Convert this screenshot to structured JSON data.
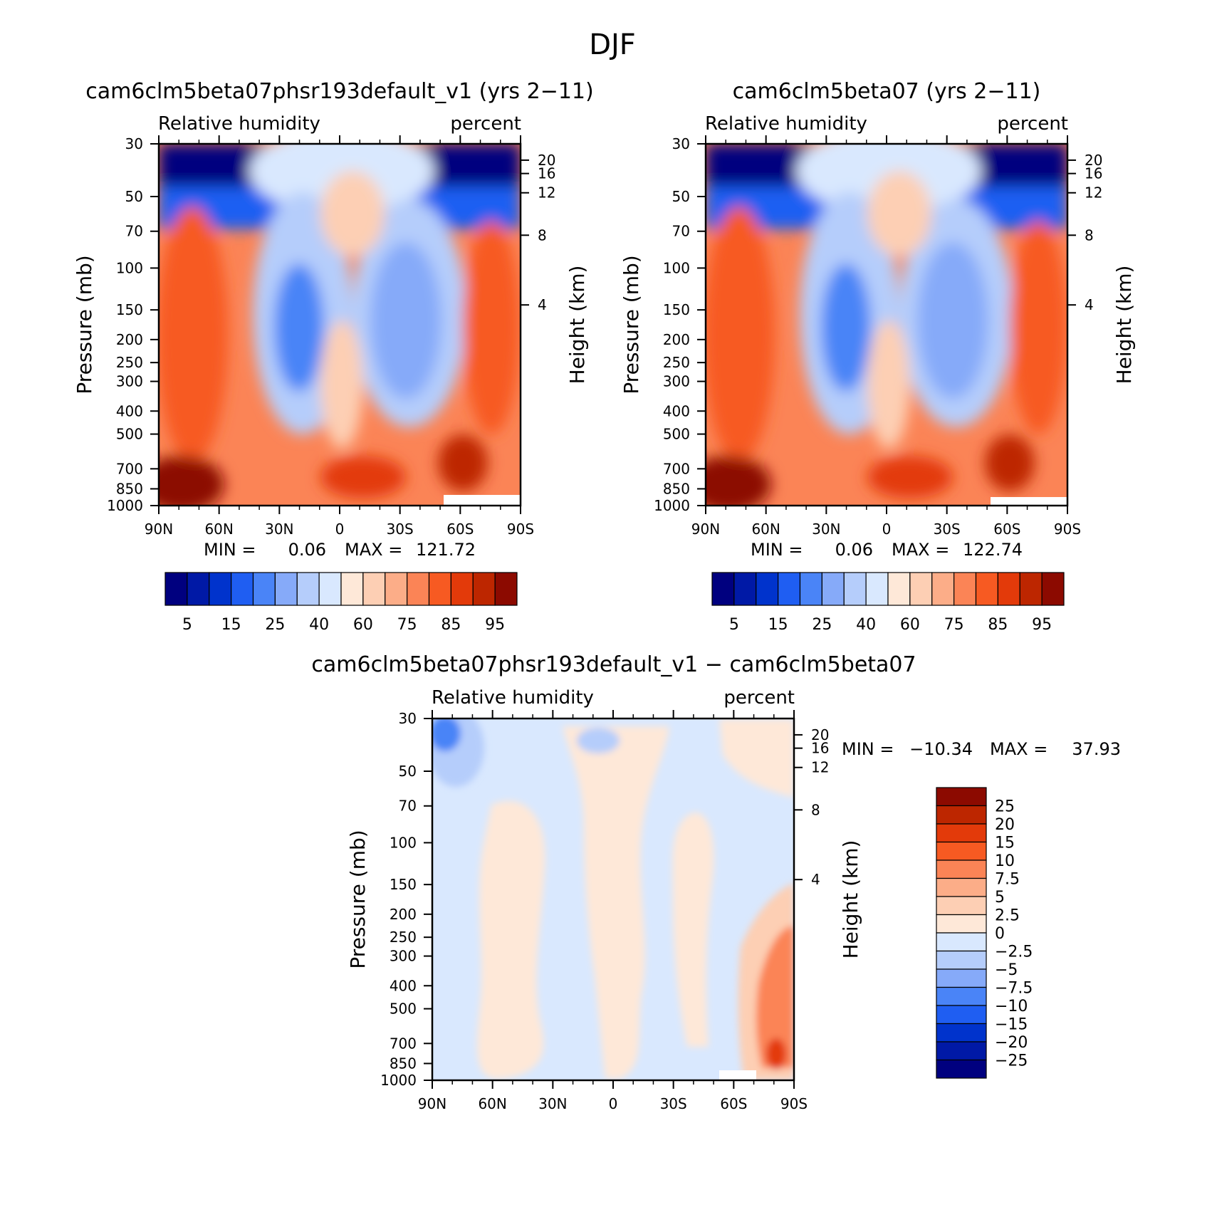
{
  "figure_title": "DJF",
  "colors": {
    "abs_levels": [
      "#00007f",
      "#0019a6",
      "#0033cc",
      "#1f5ef2",
      "#4a84f7",
      "#86aaf9",
      "#b5cdfb",
      "#d9e8fe",
      "#fee8d8",
      "#fdcfb4",
      "#fcad88",
      "#fb8456",
      "#f75a22",
      "#e33a0a",
      "#bd2600",
      "#8c0a00"
    ],
    "diff_levels": [
      "#00007f",
      "#0019a6",
      "#0033cc",
      "#1f5ef2",
      "#4a84f7",
      "#86aaf9",
      "#b5cdfb",
      "#d9e8fe",
      "#fee8d8",
      "#fdcfb4",
      "#fcad88",
      "#fb8456",
      "#f75a22",
      "#e33a0a",
      "#bd2600",
      "#8c0a00"
    ]
  },
  "chart_data": [
    {
      "type": "heatmap",
      "id": "panel1",
      "title": "cam6clm5beta07phsr193default_v1 (yrs 2−11)",
      "left_subtitle": "Relative humidity",
      "right_subtitle": "percent",
      "xlabel": "",
      "ylabel": "Pressure (mb)",
      "y2label": "Height (km)",
      "x_ticks": [
        "90N",
        "60N",
        "30N",
        "0",
        "30S",
        "60S",
        "90S"
      ],
      "x_range": [
        90,
        -90
      ],
      "y_ticks": [
        "30",
        "50",
        "70",
        "100",
        "150",
        "200",
        "250",
        "300",
        "400",
        "500",
        "700",
        "850",
        "1000"
      ],
      "y_range": [
        30,
        1000
      ],
      "y2_ticks": [
        "20",
        "16",
        "12",
        "8",
        "4"
      ],
      "min_label": "MIN =",
      "min_value": "0.06",
      "max_label": "MAX =",
      "max_value": "121.72",
      "colorbar_labels": [
        "5",
        "15",
        "25",
        "40",
        "60",
        "75",
        "85",
        "95"
      ]
    },
    {
      "type": "heatmap",
      "id": "panel2",
      "title": "cam6clm5beta07 (yrs 2−11)",
      "left_subtitle": "Relative humidity",
      "right_subtitle": "percent",
      "xlabel": "",
      "ylabel": "Pressure (mb)",
      "y2label": "Height (km)",
      "x_ticks": [
        "90N",
        "60N",
        "30N",
        "0",
        "30S",
        "60S",
        "90S"
      ],
      "x_range": [
        90,
        -90
      ],
      "y_ticks": [
        "30",
        "50",
        "70",
        "100",
        "150",
        "200",
        "250",
        "300",
        "400",
        "500",
        "700",
        "850",
        "1000"
      ],
      "y_range": [
        30,
        1000
      ],
      "y2_ticks": [
        "20",
        "16",
        "12",
        "8",
        "4"
      ],
      "min_label": "MIN =",
      "min_value": "0.06",
      "max_label": "MAX =",
      "max_value": "122.74",
      "colorbar_labels": [
        "5",
        "15",
        "25",
        "40",
        "60",
        "75",
        "85",
        "95"
      ]
    },
    {
      "type": "heatmap",
      "id": "panel3",
      "title": "cam6clm5beta07phsr193default_v1 − cam6clm5beta07",
      "left_subtitle": "Relative humidity",
      "right_subtitle": "percent",
      "xlabel": "",
      "ylabel": "Pressure (mb)",
      "y2label": "Height (km)",
      "x_ticks": [
        "90N",
        "60N",
        "30N",
        "0",
        "30S",
        "60S",
        "90S"
      ],
      "x_range": [
        90,
        -90
      ],
      "y_ticks": [
        "30",
        "50",
        "70",
        "100",
        "150",
        "200",
        "250",
        "300",
        "400",
        "500",
        "700",
        "850",
        "1000"
      ],
      "y_range": [
        30,
        1000
      ],
      "y2_ticks": [
        "20",
        "16",
        "12",
        "8",
        "4"
      ],
      "min_label": "MIN =",
      "min_value": "−10.34",
      "max_label": "MAX =",
      "max_value": "37.93",
      "colorbar_labels": [
        "25",
        "20",
        "15",
        "10",
        "7.5",
        "5",
        "2.5",
        "0",
        "−2.5",
        "−5",
        "−7.5",
        "−10",
        "−15",
        "−20",
        "−25"
      ]
    }
  ]
}
